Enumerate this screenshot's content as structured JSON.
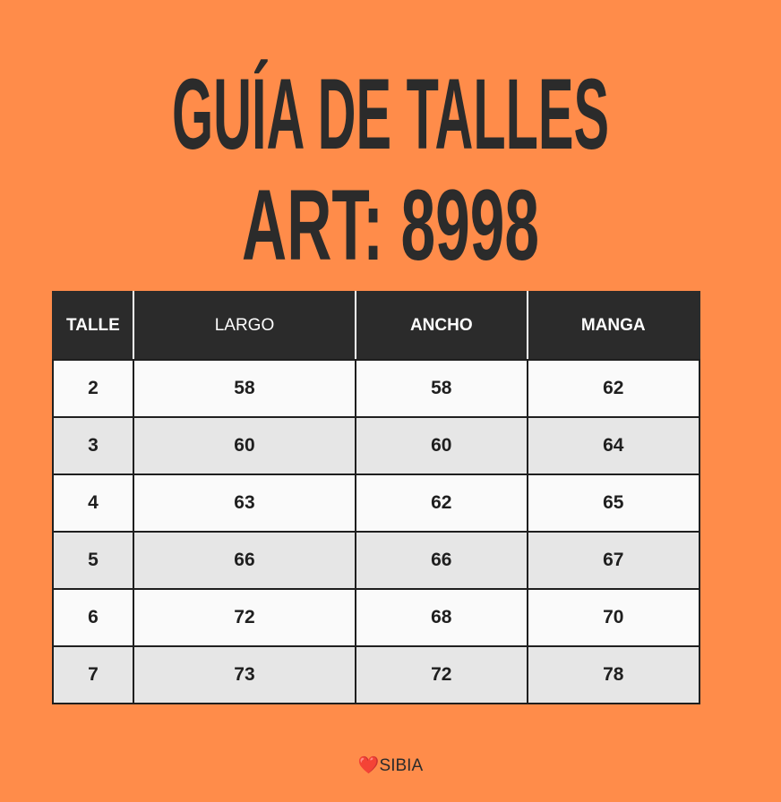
{
  "title": {
    "line1": "GUÍA DE TALLES",
    "line2": "ART: 8998"
  },
  "table": {
    "headers": [
      "TALLE",
      "LARGO",
      "ANCHO",
      "MANGA"
    ],
    "rows": [
      [
        "2",
        "58",
        "58",
        "62"
      ],
      [
        "3",
        "60",
        "60",
        "64"
      ],
      [
        "4",
        "63",
        "62",
        "65"
      ],
      [
        "5",
        "66",
        "66",
        "67"
      ],
      [
        "6",
        "72",
        "68",
        "70"
      ],
      [
        "7",
        "73",
        "72",
        "78"
      ]
    ]
  },
  "footer": {
    "heart": "❤️",
    "brand": "SIBIA"
  },
  "colors": {
    "background": "#ff8c4a",
    "header": "#2b2b2b",
    "row_light": "#fafafa",
    "row_dark": "#e6e6e6"
  }
}
